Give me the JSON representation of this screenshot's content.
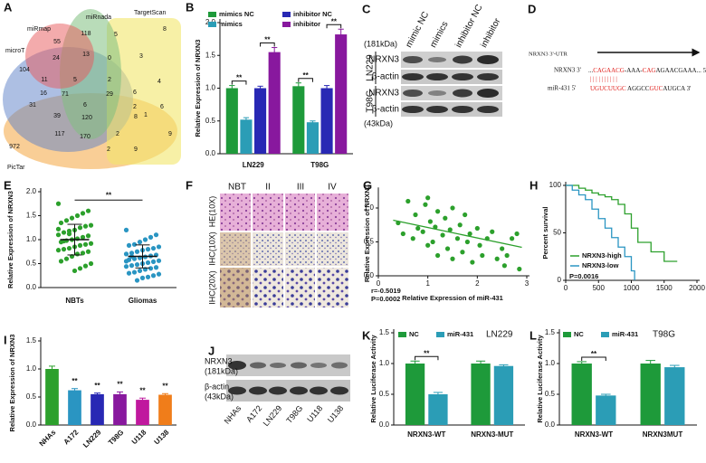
{
  "panel_labels": [
    "A",
    "B",
    "C",
    "D",
    "E",
    "F",
    "G",
    "H",
    "I",
    "J",
    "K",
    "L"
  ],
  "venn": {
    "sets": [
      "miRmap",
      "miRnada",
      "TargetScan",
      "microT",
      "PicTar"
    ],
    "counts": [
      55,
      118,
      5,
      8,
      24,
      13,
      0,
      3,
      104,
      11,
      5,
      2,
      4,
      16,
      71,
      29,
      6,
      2,
      6,
      31,
      39,
      6,
      120,
      8,
      1,
      972,
      117,
      170,
      2,
      9,
      2,
      9
    ]
  },
  "blot_c": {
    "lanes": [
      "mimic NC",
      "mimics",
      "inhibitor NC",
      "inhibitor"
    ],
    "cell_lines": [
      "LN229",
      "T98G"
    ],
    "proteins": [
      "NRXN3",
      "β-actin",
      "NRXN3",
      "β-actin"
    ],
    "sizes": [
      "(181kDa)",
      "(43kDa)"
    ]
  },
  "diagram_d": {
    "utr_label": "NRXN3 3'-UTR",
    "target_label": "NRXN3 3'",
    "mir_label": "miR-431 5'",
    "target_seq": [
      {
        "text": "...",
        "color": "#111"
      },
      {
        "text": "CAGAACG",
        "color": "#e0201c"
      },
      {
        "text": "-AAA-",
        "color": "#111"
      },
      {
        "text": "CAG",
        "color": "#e0201c"
      },
      {
        "text": "AGAACGAAA... 5'",
        "color": "#111"
      }
    ],
    "mir_seq": [
      {
        "text": "UGUCUUGC",
        "color": "#e0201c"
      },
      {
        "text": " AGGCC",
        "color": "#111"
      },
      {
        "text": "GUC",
        "color": "#e0201c"
      },
      {
        "text": "AUGCA 3'",
        "color": "#111"
      }
    ]
  },
  "ihc_f": {
    "columns": [
      "NBT",
      "II",
      "III",
      "IV"
    ],
    "rows": [
      "HE(10X)",
      "IHC(10X)",
      "IHC(20X)"
    ]
  },
  "blot_j": {
    "labels": [
      "NRXN3",
      "(181kDa)",
      "β-actin",
      "(43kDa)"
    ],
    "lanes": [
      "NHAs",
      "A172",
      "LN229",
      "T98G",
      "U118",
      "U138"
    ]
  },
  "chart_data": [
    {
      "type": "bar",
      "ylabel": "Relative Expression of NRXN3",
      "categories": [
        "LN229",
        "T98G"
      ],
      "series": [
        {
          "name": "mimics NC",
          "color": "#1e9a3a",
          "values": [
            1.0,
            1.03
          ],
          "errors": [
            0.04,
            0.05
          ]
        },
        {
          "name": "mimics",
          "color": "#2b9db6",
          "values": [
            0.52,
            0.48
          ],
          "errors": [
            0.03,
            0.02
          ]
        },
        {
          "name": "inhibitor NC",
          "color": "#2828b4",
          "values": [
            1.0,
            1.0
          ],
          "errors": [
            0.03,
            0.04
          ]
        },
        {
          "name": "inhibitor",
          "color": "#88189e",
          "values": [
            1.55,
            1.82
          ],
          "errors": [
            0.07,
            0.08
          ]
        }
      ],
      "ylim": [
        0,
        2.0
      ],
      "yticks": [
        {
          "value": 0,
          "label": "0.0"
        },
        {
          "value": 0.5,
          "label": "0.5"
        },
        {
          "value": 1,
          "label": "1.0"
        },
        {
          "value": 1.5,
          "label": "1.5"
        },
        {
          "value": 2,
          "label": "2.0"
        }
      ],
      "annotations": [
        "**",
        "**",
        "**",
        "**"
      ]
    },
    {
      "type": "strip",
      "ylabel": "Relative Expression of NRXN3",
      "categories": [
        "NBTs",
        "Gliomas"
      ],
      "colors": [
        "#2ca02c",
        "#2a95c2"
      ],
      "points": [
        [
          1.75,
          1.6,
          1.55,
          1.5,
          1.45,
          1.4,
          1.35,
          1.3,
          1.28,
          1.25,
          1.2,
          1.18,
          1.15,
          1.1,
          1.08,
          1.05,
          1.02,
          1.0,
          0.98,
          0.95,
          0.92,
          0.9,
          0.88,
          0.85,
          0.82,
          0.8,
          0.78,
          0.75,
          0.72,
          0.7,
          0.65,
          0.6,
          0.55,
          0.5,
          0.45,
          0.4,
          0.35,
          1.12,
          0.97,
          1.22
        ],
        [
          1.2,
          1.1,
          1.05,
          1.0,
          0.95,
          0.9,
          0.88,
          0.85,
          0.82,
          0.8,
          0.78,
          0.75,
          0.72,
          0.7,
          0.68,
          0.66,
          0.64,
          0.62,
          0.6,
          0.58,
          0.56,
          0.54,
          0.52,
          0.5,
          0.48,
          0.46,
          0.44,
          0.42,
          0.4,
          0.38,
          0.35,
          0.32,
          0.3,
          0.28,
          0.25,
          0.22,
          0.2,
          0.15,
          0.65,
          0.55
        ]
      ],
      "mean": [
        1.0,
        0.65
      ],
      "sd": [
        0.32,
        0.24
      ],
      "ylim": [
        0,
        2.0
      ],
      "yticks": [
        {
          "value": 0,
          "label": "0.0"
        },
        {
          "value": 0.5,
          "label": "0.5"
        },
        {
          "value": 1,
          "label": "1.0"
        },
        {
          "value": 1.5,
          "label": "1.5"
        },
        {
          "value": 2,
          "label": "2.0"
        }
      ],
      "annotations": [
        "**"
      ]
    },
    {
      "type": "scatter",
      "xlabel": "Relative Expression of miR-431",
      "ylabel": "Relative Expression of NRXN3",
      "color": "#2ca02c",
      "x": [
        0.4,
        0.5,
        0.6,
        0.7,
        0.75,
        0.8,
        0.9,
        0.95,
        1.0,
        1.05,
        1.1,
        1.15,
        1.2,
        1.2,
        1.3,
        1.35,
        1.4,
        1.45,
        1.5,
        1.5,
        1.6,
        1.65,
        1.7,
        1.75,
        1.8,
        1.85,
        1.9,
        2.0,
        2.05,
        2.1,
        2.2,
        2.3,
        2.4,
        2.5,
        2.55,
        2.6,
        2.7,
        2.8,
        2.85,
        1.0
      ],
      "values": [
        0.78,
        0.62,
        1.1,
        0.55,
        0.9,
        0.7,
        0.65,
        1.05,
        0.45,
        0.8,
        0.5,
        0.72,
        0.3,
        0.95,
        0.6,
        0.85,
        0.4,
        0.68,
        0.25,
        1.0,
        0.55,
        0.75,
        0.35,
        0.9,
        0.5,
        0.62,
        0.2,
        0.7,
        0.45,
        0.3,
        0.55,
        0.65,
        0.25,
        0.4,
        0.15,
        0.3,
        0.55,
        0.62,
        0.1,
        1.15
      ],
      "fit": {
        "x": [
          0.3,
          2.9
        ],
        "values": [
          0.82,
          0.42
        ]
      },
      "xlim": [
        0,
        3
      ],
      "xticks": [
        0,
        1,
        2,
        3
      ],
      "ylim": [
        0,
        1.25
      ],
      "yticks": [
        {
          "value": 0,
          "label": "0.0"
        },
        {
          "value": 0.5,
          "label": "0.5"
        },
        {
          "value": 1,
          "label": "1.0"
        }
      ],
      "annotations": [
        "r=-0.5019",
        "P=0.0002"
      ]
    },
    {
      "type": "line",
      "step": true,
      "ylabel": "Percent survival",
      "series": [
        {
          "name": "NRXN3-high",
          "color": "#2ca02c",
          "x": [
            0,
            200,
            300,
            400,
            500,
            600,
            700,
            800,
            900,
            1000,
            1100,
            1300,
            1500,
            1700
          ],
          "values": [
            100,
            97,
            95,
            92,
            90,
            88,
            85,
            80,
            70,
            55,
            40,
            30,
            20,
            20
          ]
        },
        {
          "name": "NRXN3-low",
          "color": "#2a95c2",
          "x": [
            0,
            100,
            200,
            300,
            400,
            500,
            600,
            700,
            800,
            900,
            1000,
            1050
          ],
          "values": [
            100,
            95,
            90,
            85,
            75,
            65,
            55,
            45,
            35,
            25,
            10,
            0
          ]
        }
      ],
      "xlim": [
        0,
        2000
      ],
      "xticks": [
        0,
        500,
        1000,
        1500,
        2000
      ],
      "ylim": [
        0,
        100
      ],
      "yticks": [
        0,
        50,
        100
      ],
      "annotations": [
        "P=0.0016"
      ]
    },
    {
      "type": "bar",
      "ylabel": "Relative Expression of NRXN3",
      "categories": [
        "NHAs",
        "A172",
        "LN229",
        "T98G",
        "U118",
        "U138"
      ],
      "values": [
        1.0,
        0.62,
        0.55,
        0.55,
        0.45,
        0.54
      ],
      "errors": [
        0.05,
        0.03,
        0.02,
        0.04,
        0.03,
        0.02
      ],
      "colors": [
        "#2ca02c",
        "#2a95c2",
        "#2828b4",
        "#88189e",
        "#c0189e",
        "#f07d1a"
      ],
      "ylim": [
        0,
        1.5
      ],
      "yticks": [
        {
          "value": 0,
          "label": "0.0"
        },
        {
          "value": 0.5,
          "label": "0.5"
        },
        {
          "value": 1,
          "label": "1.0"
        },
        {
          "value": 1.5,
          "label": "1.5"
        }
      ],
      "annotations": [
        "**",
        "**",
        "**",
        "**",
        "**"
      ]
    },
    {
      "type": "bar",
      "title": "LN229",
      "ylabel": "Relative Luciferase Activity",
      "categories": [
        "NRXN3-WT",
        "NRXN3-MUT"
      ],
      "series": [
        {
          "name": "NC",
          "color": "#1e9a3a",
          "values": [
            1.0,
            1.0
          ],
          "errors": [
            0.04,
            0.04
          ]
        },
        {
          "name": "miR-431",
          "color": "#2b9db6",
          "values": [
            0.5,
            0.96
          ],
          "errors": [
            0.03,
            0.02
          ]
        }
      ],
      "ylim": [
        0,
        1.5
      ],
      "yticks": [
        {
          "value": 0,
          "label": "0.0"
        },
        {
          "value": 0.5,
          "label": "0.5"
        },
        {
          "value": 1,
          "label": "1.0"
        },
        {
          "value": 1.5,
          "label": "1.5"
        }
      ],
      "annotations": [
        "**"
      ]
    },
    {
      "type": "bar",
      "title": "T98G",
      "ylabel": "Relative Luciferase Activity",
      "categories": [
        "NRXN3-WT",
        "NRXN3MUT"
      ],
      "series": [
        {
          "name": "NC",
          "color": "#1e9a3a",
          "values": [
            1.0,
            1.0
          ],
          "errors": [
            0.03,
            0.05
          ]
        },
        {
          "name": "miR-431",
          "color": "#2b9db6",
          "values": [
            0.48,
            0.94
          ],
          "errors": [
            0.02,
            0.03
          ]
        }
      ],
      "ylim": [
        0,
        1.5
      ],
      "yticks": [
        {
          "value": 0,
          "label": "0.0"
        },
        {
          "value": 0.5,
          "label": "0.5"
        },
        {
          "value": 1,
          "label": "1.0"
        },
        {
          "value": 1.5,
          "label": "1.5"
        }
      ],
      "annotations": [
        "**"
      ]
    }
  ]
}
